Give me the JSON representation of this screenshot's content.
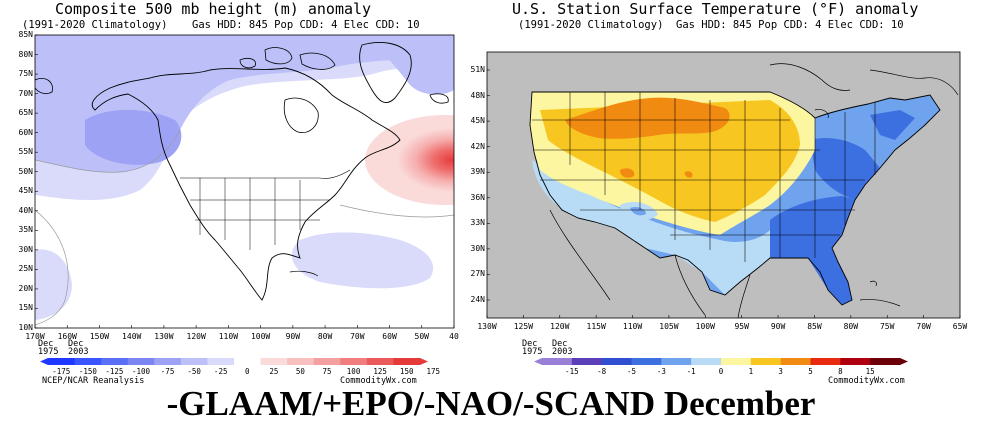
{
  "left_panel": {
    "title": "Composite 500 mb height (m) anomaly",
    "subtitle_left": "(1991-2020 Climatology)",
    "subtitle_right": "Gas HDD: 845 Pop CDD: 4 Elec CDD: 10",
    "lat_ticks": [
      "85N",
      "80N",
      "75N",
      "70N",
      "65N",
      "60N",
      "55N",
      "50N",
      "45N",
      "40N",
      "35N",
      "30N",
      "25N",
      "20N",
      "15N",
      "10N"
    ],
    "lon_ticks": [
      "170W",
      "160W",
      "150W",
      "140W",
      "130W",
      "120W",
      "110W",
      "100W",
      "90W",
      "80W",
      "70W",
      "60W",
      "50W",
      "40"
    ],
    "years": [
      "Dec 1975",
      "Dec 2003"
    ],
    "colorbar_labels": [
      "-175",
      "-150",
      "-125",
      "-100",
      "-75",
      "-50",
      "-25",
      "0",
      "25",
      "50",
      "75",
      "100",
      "125",
      "150",
      "175"
    ],
    "colorbar_colors": [
      "#1f38ff",
      "#3a55ff",
      "#5a6ff5",
      "#7c86f2",
      "#9ea2f5",
      "#bcbff8",
      "#dadbfb",
      "#ffffff",
      "#fbdada",
      "#f8bfbf",
      "#f5a0a0",
      "#f07e7e",
      "#ea5a5a",
      "#e53a3a"
    ],
    "credit_left": "NCEP/NCAR Reanalysis",
    "credit_right": "CommodityWx.com"
  },
  "right_panel": {
    "title": "U.S. Station Surface Temperature (°F) anomaly",
    "subtitle_left": "(1991-2020 Climatology)",
    "subtitle_right": "Gas HDD: 845 Pop CDD: 4 Elec CDD: 10",
    "lat_ticks": [
      "51N",
      "48N",
      "45N",
      "42N",
      "39N",
      "36N",
      "33N",
      "30N",
      "27N",
      "24N"
    ],
    "lon_ticks": [
      "130W",
      "125W",
      "120W",
      "115W",
      "110W",
      "105W",
      "100W",
      "95W",
      "90W",
      "85W",
      "80W",
      "75W",
      "70W",
      "65W"
    ],
    "years": [
      "Dec 1975",
      "Dec 2003"
    ],
    "colorbar_labels": [
      "-15",
      "-8",
      "-5",
      "-3",
      "-1",
      "0",
      "1",
      "3",
      "5",
      "8",
      "15"
    ],
    "colorbar_colors": [
      "#9a7fd6",
      "#5a3fb8",
      "#2f4fd0",
      "#3c6fe0",
      "#6fa3ee",
      "#b8dcf6",
      "#fdf6a0",
      "#f7c620",
      "#f08a10",
      "#e82a10",
      "#b00010",
      "#6b0008"
    ],
    "credit_right": "CommodityWx.com"
  },
  "caption": "-GLAAM/+EPO/-NAO/-SCAND December"
}
